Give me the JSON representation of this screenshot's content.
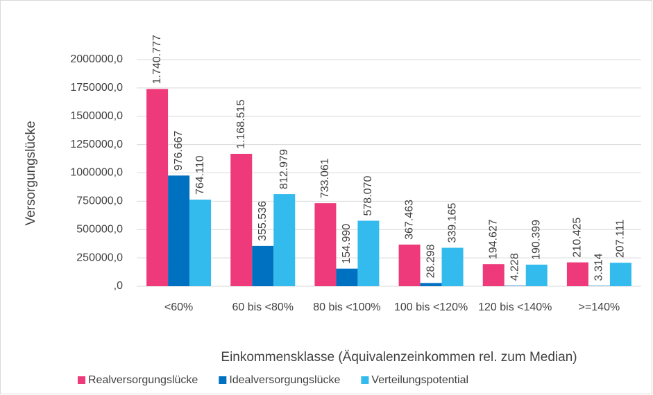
{
  "chart_data": {
    "type": "bar",
    "x_label": "Einkommensklasse (Äquivalenzeinkommen rel. zum Median)",
    "y_label": "Versorgungslücke",
    "categories": [
      "<60%",
      "60 bis <80%",
      "80 bis <100%",
      "100 bis <120%",
      "120 bis <140%",
      ">=140%"
    ],
    "series": [
      {
        "name": "Realversorgungslücke",
        "color": "#ee3a7a",
        "values": [
          1740777,
          1168515,
          733061,
          367463,
          194627,
          210425
        ],
        "value_labels": [
          "1.740.777",
          "1.168.515",
          "733.061",
          "367.463",
          "194.627",
          "210.425"
        ]
      },
      {
        "name": "Idealversorgungslücke",
        "color": "#0070c0",
        "values": [
          976667,
          355536,
          154990,
          28298,
          4228,
          3314
        ],
        "value_labels": [
          "976.667",
          "355.536",
          "154.990",
          "28.298",
          "4.228",
          "3.314"
        ]
      },
      {
        "name": "Verteilungspotential",
        "color": "#33bbee",
        "values": [
          764110,
          812979,
          578070,
          339165,
          190399,
          207111
        ],
        "value_labels": [
          "764.110",
          "812.979",
          "578.070",
          "339.165",
          "190.399",
          "207.111"
        ]
      }
    ],
    "ylim": [
      0,
      2000000
    ],
    "yticks": [
      {
        "value": 0,
        "label": ",0"
      },
      {
        "value": 250000,
        "label": "250000,0"
      },
      {
        "value": 500000,
        "label": "500000,0"
      },
      {
        "value": 750000,
        "label": "750000,0"
      },
      {
        "value": 1000000,
        "label": "1000000,0"
      },
      {
        "value": 1250000,
        "label": "1250000,0"
      },
      {
        "value": 1500000,
        "label": "1500000,0"
      },
      {
        "value": 1750000,
        "label": "1750000,0"
      },
      {
        "value": 2000000,
        "label": "2000000,0"
      }
    ],
    "grid": true,
    "legend": "bottom"
  }
}
